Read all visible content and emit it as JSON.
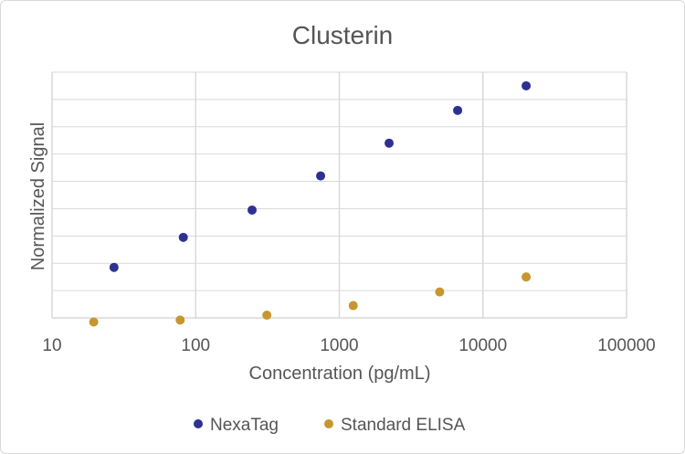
{
  "chart_data": {
    "type": "scatter",
    "title": "Clusterin",
    "xlabel": "Concentration (pg/mL)",
    "ylabel": "Normalized Signal",
    "x_scale": "log",
    "xlim": [
      10,
      100000
    ],
    "ylim": [
      0,
      9
    ],
    "x_ticks": [
      "10",
      "100",
      "1000",
      "10000",
      "100000"
    ],
    "y_gridlines": 9,
    "y_tick_labels_shown": false,
    "grid": true,
    "legend": "bottom",
    "series": [
      {
        "name": "NexaTag",
        "color": "#2e3192",
        "points": [
          {
            "x": 27,
            "y": 1.85
          },
          {
            "x": 82,
            "y": 2.95
          },
          {
            "x": 247,
            "y": 3.95
          },
          {
            "x": 741,
            "y": 5.2
          },
          {
            "x": 2222,
            "y": 6.4
          },
          {
            "x": 6667,
            "y": 7.6
          },
          {
            "x": 20000,
            "y": 8.5
          }
        ]
      },
      {
        "name": "Standard ELISA",
        "color": "#c8962e",
        "points": [
          {
            "x": 19.5,
            "y": -0.15
          },
          {
            "x": 78,
            "y": -0.08
          },
          {
            "x": 313,
            "y": 0.1
          },
          {
            "x": 1250,
            "y": 0.45
          },
          {
            "x": 5000,
            "y": 0.95
          },
          {
            "x": 20000,
            "y": 1.5
          }
        ]
      }
    ]
  }
}
